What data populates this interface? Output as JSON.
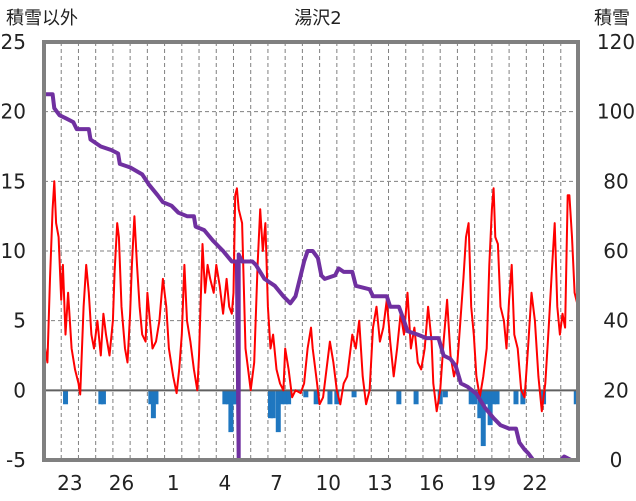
{
  "chart_data": {
    "type": "line",
    "title": "湯沢2",
    "left_axis_label": "積雪以外",
    "right_axis_label": "積雪",
    "left_axis": {
      "min": -5,
      "max": 25,
      "ticks": [
        "-5",
        "0",
        "5",
        "10",
        "15",
        "20",
        "25"
      ]
    },
    "right_axis": {
      "min": 0,
      "max": 120,
      "ticks": [
        "0",
        "20",
        "40",
        "60",
        "80",
        "100",
        "120"
      ]
    },
    "x_range": [
      0,
      31
    ],
    "x_tick_labels": [
      {
        "x": 1.5,
        "label": "23"
      },
      {
        "x": 4.5,
        "label": "26"
      },
      {
        "x": 7.5,
        "label": "1"
      },
      {
        "x": 10.5,
        "label": "4"
      },
      {
        "x": 13.5,
        "label": "7"
      },
      {
        "x": 16.5,
        "label": "10"
      },
      {
        "x": 19.5,
        "label": "13"
      },
      {
        "x": 22.5,
        "label": "16"
      },
      {
        "x": 25.5,
        "label": "19"
      },
      {
        "x": 28.5,
        "label": "22"
      }
    ],
    "grid": {
      "vertical_dashed_every": 1,
      "horizontal_dashed": [
        5,
        10,
        15,
        20
      ]
    },
    "series": [
      {
        "axis": "left",
        "color": "#ff0000",
        "kind": "line",
        "points": [
          [
            0.0,
            3.5
          ],
          [
            0.2,
            2.0
          ],
          [
            0.35,
            8.0
          ],
          [
            0.5,
            13.0
          ],
          [
            0.6,
            15.0
          ],
          [
            0.7,
            12.0
          ],
          [
            0.85,
            11.0
          ],
          [
            1.0,
            6.5
          ],
          [
            1.1,
            9.0
          ],
          [
            1.25,
            4.0
          ],
          [
            1.4,
            7.0
          ],
          [
            1.6,
            3.0
          ],
          [
            1.8,
            1.5
          ],
          [
            2.0,
            0.5
          ],
          [
            2.1,
            -0.3
          ],
          [
            2.3,
            6.0
          ],
          [
            2.45,
            9.0
          ],
          [
            2.6,
            7.0
          ],
          [
            2.75,
            4.0
          ],
          [
            2.9,
            3.0
          ],
          [
            3.1,
            5.0
          ],
          [
            3.3,
            2.5
          ],
          [
            3.45,
            5.5
          ],
          [
            3.6,
            4.0
          ],
          [
            3.8,
            2.5
          ],
          [
            4.0,
            5.0
          ],
          [
            4.1,
            8.5
          ],
          [
            4.25,
            12.0
          ],
          [
            4.35,
            11.0
          ],
          [
            4.5,
            6.0
          ],
          [
            4.7,
            3.0
          ],
          [
            4.85,
            2.0
          ],
          [
            5.0,
            5.5
          ],
          [
            5.1,
            9.0
          ],
          [
            5.25,
            12.5
          ],
          [
            5.4,
            9.0
          ],
          [
            5.55,
            6.0
          ],
          [
            5.7,
            4.0
          ],
          [
            5.9,
            3.5
          ],
          [
            6.0,
            7.0
          ],
          [
            6.15,
            5.0
          ],
          [
            6.3,
            3.0
          ],
          [
            6.5,
            3.5
          ],
          [
            6.7,
            5.0
          ],
          [
            6.9,
            8.0
          ],
          [
            7.1,
            6.0
          ],
          [
            7.25,
            3.0
          ],
          [
            7.5,
            1.0
          ],
          [
            7.7,
            -0.2
          ],
          [
            7.85,
            1.5
          ],
          [
            8.0,
            4.0
          ],
          [
            8.15,
            9.0
          ],
          [
            8.3,
            5.0
          ],
          [
            8.5,
            3.5
          ],
          [
            8.7,
            1.5
          ],
          [
            8.9,
            0.0
          ],
          [
            9.0,
            2.5
          ],
          [
            9.2,
            10.5
          ],
          [
            9.35,
            7.0
          ],
          [
            9.5,
            9.0
          ],
          [
            9.65,
            8.0
          ],
          [
            9.85,
            7.0
          ],
          [
            10.0,
            9.0
          ],
          [
            10.2,
            7.5
          ],
          [
            10.4,
            5.5
          ],
          [
            10.6,
            8.0
          ],
          [
            10.75,
            6.0
          ],
          [
            10.9,
            5.5
          ],
          [
            11.0,
            7.0
          ],
          [
            11.1,
            14.0
          ],
          [
            11.2,
            14.5
          ],
          [
            11.3,
            13.0
          ],
          [
            11.5,
            12.0
          ],
          [
            11.7,
            3.0
          ],
          [
            11.9,
            1.0
          ],
          [
            12.0,
            0.0
          ],
          [
            12.2,
            2.0
          ],
          [
            12.4,
            9.0
          ],
          [
            12.55,
            13.0
          ],
          [
            12.7,
            10.0
          ],
          [
            12.85,
            12.0
          ],
          [
            13.0,
            6.0
          ],
          [
            13.15,
            3.0
          ],
          [
            13.3,
            4.0
          ],
          [
            13.5,
            1.5
          ],
          [
            13.7,
            0.5
          ],
          [
            13.9,
            0.0
          ],
          [
            14.0,
            3.0
          ],
          [
            14.2,
            1.5
          ],
          [
            14.4,
            -0.5
          ],
          [
            14.6,
            0.0
          ],
          [
            14.9,
            -0.2
          ],
          [
            15.1,
            0.5
          ],
          [
            15.3,
            3.0
          ],
          [
            15.5,
            4.5
          ],
          [
            15.6,
            3.0
          ],
          [
            15.8,
            1.0
          ],
          [
            16.0,
            -1.0
          ],
          [
            16.2,
            -0.5
          ],
          [
            16.4,
            1.5
          ],
          [
            16.6,
            3.5
          ],
          [
            16.8,
            2.0
          ],
          [
            17.0,
            0.0
          ],
          [
            17.2,
            -1.0
          ],
          [
            17.4,
            0.5
          ],
          [
            17.6,
            1.0
          ],
          [
            17.9,
            4.0
          ],
          [
            18.1,
            3.0
          ],
          [
            18.3,
            5.0
          ],
          [
            18.5,
            1.0
          ],
          [
            18.7,
            -1.0
          ],
          [
            18.9,
            0.0
          ],
          [
            19.1,
            4.5
          ],
          [
            19.3,
            6.0
          ],
          [
            19.5,
            3.5
          ],
          [
            19.7,
            4.5
          ],
          [
            19.9,
            6.5
          ],
          [
            20.1,
            3.5
          ],
          [
            20.3,
            1.0
          ],
          [
            20.5,
            3.0
          ],
          [
            20.7,
            5.5
          ],
          [
            20.9,
            4.0
          ],
          [
            21.1,
            7.0
          ],
          [
            21.3,
            3.0
          ],
          [
            21.5,
            4.5
          ],
          [
            21.7,
            2.0
          ],
          [
            21.9,
            1.5
          ],
          [
            22.1,
            3.0
          ],
          [
            22.3,
            6.0
          ],
          [
            22.5,
            3.5
          ],
          [
            22.6,
            0.5
          ],
          [
            22.8,
            -1.5
          ],
          [
            23.0,
            0.0
          ],
          [
            23.2,
            3.5
          ],
          [
            23.4,
            6.5
          ],
          [
            23.6,
            2.5
          ],
          [
            23.8,
            1.0
          ],
          [
            24.0,
            2.0
          ],
          [
            24.2,
            5.5
          ],
          [
            24.35,
            8.0
          ],
          [
            24.5,
            11.0
          ],
          [
            24.65,
            12.0
          ],
          [
            24.8,
            6.0
          ],
          [
            24.95,
            4.0
          ],
          [
            25.1,
            1.0
          ],
          [
            25.3,
            -0.5
          ],
          [
            25.5,
            1.0
          ],
          [
            25.7,
            3.0
          ],
          [
            25.85,
            9.0
          ],
          [
            26.0,
            13.0
          ],
          [
            26.1,
            14.5
          ],
          [
            26.2,
            11.0
          ],
          [
            26.35,
            10.5
          ],
          [
            26.5,
            6.0
          ],
          [
            26.7,
            5.0
          ],
          [
            26.85,
            3.0
          ],
          [
            27.0,
            6.5
          ],
          [
            27.15,
            9.0
          ],
          [
            27.3,
            4.0
          ],
          [
            27.5,
            3.0
          ],
          [
            27.7,
            0.0
          ],
          [
            27.9,
            -0.5
          ],
          [
            28.1,
            3.0
          ],
          [
            28.3,
            7.0
          ],
          [
            28.5,
            5.0
          ],
          [
            28.7,
            1.0
          ],
          [
            28.9,
            -1.5
          ],
          [
            29.1,
            0.5
          ],
          [
            29.3,
            4.5
          ],
          [
            29.5,
            9.0
          ],
          [
            29.65,
            12.0
          ],
          [
            29.8,
            6.0
          ],
          [
            29.95,
            4.0
          ],
          [
            30.1,
            5.5
          ],
          [
            30.25,
            4.5
          ],
          [
            30.4,
            14.0
          ],
          [
            30.5,
            14.0
          ],
          [
            30.65,
            11.0
          ],
          [
            30.8,
            7.0
          ],
          [
            31.0,
            6.0
          ]
        ]
      },
      {
        "axis": "right",
        "color": "#7030a0",
        "kind": "step",
        "points": [
          [
            0.0,
            105
          ],
          [
            0.5,
            105
          ],
          [
            0.6,
            101
          ],
          [
            0.9,
            99
          ],
          [
            1.3,
            98
          ],
          [
            1.7,
            97
          ],
          [
            1.9,
            95
          ],
          [
            2.6,
            95
          ],
          [
            2.7,
            92
          ],
          [
            3.3,
            90
          ],
          [
            3.9,
            89
          ],
          [
            4.3,
            88
          ],
          [
            4.4,
            85
          ],
          [
            5.0,
            84
          ],
          [
            5.7,
            82
          ],
          [
            6.1,
            79
          ],
          [
            6.6,
            76
          ],
          [
            6.9,
            74
          ],
          [
            7.4,
            73
          ],
          [
            7.8,
            71
          ],
          [
            8.3,
            70
          ],
          [
            8.7,
            70
          ],
          [
            8.8,
            67
          ],
          [
            9.3,
            66
          ],
          [
            9.8,
            63
          ],
          [
            10.4,
            60
          ],
          [
            10.9,
            57
          ],
          [
            11.2,
            57
          ],
          [
            11.3,
            0
          ],
          [
            11.3,
            59
          ],
          [
            11.5,
            57
          ],
          [
            12.1,
            57
          ],
          [
            12.3,
            56
          ],
          [
            12.8,
            52
          ],
          [
            13.4,
            50
          ],
          [
            13.9,
            47
          ],
          [
            14.3,
            45
          ],
          [
            14.6,
            47
          ],
          [
            14.9,
            53
          ],
          [
            15.1,
            57
          ],
          [
            15.3,
            60
          ],
          [
            15.6,
            60
          ],
          [
            15.9,
            58
          ],
          [
            16.1,
            53
          ],
          [
            16.3,
            52
          ],
          [
            16.9,
            53
          ],
          [
            17.1,
            55
          ],
          [
            17.4,
            54
          ],
          [
            17.9,
            54
          ],
          [
            18.1,
            50
          ],
          [
            18.9,
            49
          ],
          [
            19.1,
            47
          ],
          [
            19.9,
            47
          ],
          [
            20.1,
            44
          ],
          [
            20.6,
            44
          ],
          [
            20.9,
            40
          ],
          [
            21.1,
            37
          ],
          [
            21.7,
            36
          ],
          [
            22.2,
            35
          ],
          [
            22.9,
            35
          ],
          [
            23.2,
            30
          ],
          [
            23.6,
            29
          ],
          [
            23.9,
            27
          ],
          [
            24.2,
            22
          ],
          [
            24.6,
            21
          ],
          [
            25.1,
            19
          ],
          [
            25.6,
            15
          ],
          [
            26.1,
            12
          ],
          [
            26.5,
            10
          ],
          [
            27.0,
            9
          ],
          [
            27.4,
            9
          ],
          [
            27.6,
            5
          ],
          [
            27.9,
            3
          ],
          [
            28.1,
            2
          ],
          [
            28.4,
            0
          ],
          [
            30.0,
            0
          ],
          [
            30.2,
            1
          ],
          [
            30.6,
            0
          ],
          [
            31.0,
            0
          ]
        ]
      },
      {
        "axis": "left",
        "color": "#1f77c0",
        "kind": "bars_below_zero",
        "bars": [
          [
            1.25,
            -1.0
          ],
          [
            3.3,
            -1.0
          ],
          [
            3.45,
            -1.0
          ],
          [
            6.2,
            -1.0
          ],
          [
            6.35,
            -2.0
          ],
          [
            6.5,
            -1.0
          ],
          [
            10.5,
            -1.0
          ],
          [
            10.7,
            -1.0
          ],
          [
            10.85,
            -3.0
          ],
          [
            11.0,
            -1.0
          ],
          [
            11.15,
            -1.0
          ],
          [
            13.15,
            -2.0
          ],
          [
            13.3,
            -2.0
          ],
          [
            13.6,
            -3.0
          ],
          [
            13.8,
            -1.0
          ],
          [
            14.0,
            -1.0
          ],
          [
            14.2,
            -1.0
          ],
          [
            15.2,
            -0.5
          ],
          [
            15.8,
            -1.0
          ],
          [
            16.6,
            -1.0
          ],
          [
            17.0,
            -1.0
          ],
          [
            18.0,
            -0.5
          ],
          [
            20.6,
            -1.0
          ],
          [
            21.6,
            -1.0
          ],
          [
            23.0,
            -1.0
          ],
          [
            23.3,
            -0.5
          ],
          [
            24.8,
            -1.0
          ],
          [
            25.0,
            -1.0
          ],
          [
            25.3,
            -2.0
          ],
          [
            25.5,
            -4.0
          ],
          [
            25.7,
            -1.0
          ],
          [
            25.9,
            -2.5
          ],
          [
            26.1,
            -1.0
          ],
          [
            26.3,
            -1.0
          ],
          [
            27.4,
            -1.0
          ],
          [
            27.8,
            -1.0
          ],
          [
            29.0,
            -1.0
          ],
          [
            30.9,
            -1.0
          ]
        ]
      }
    ]
  }
}
